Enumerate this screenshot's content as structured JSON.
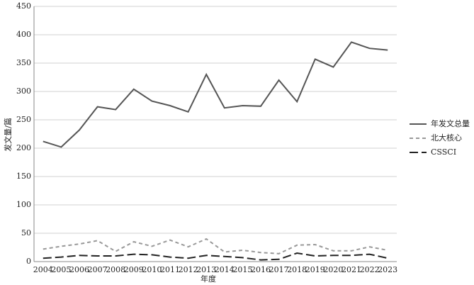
{
  "chart_data": {
    "type": "line",
    "x_label": "年度",
    "y_label": "发文量/篇",
    "categories": [
      "2004",
      "2005",
      "2006",
      "2007",
      "2008",
      "2009",
      "2010",
      "2011",
      "2012",
      "2013",
      "2014",
      "2015",
      "2016",
      "2017",
      "2018",
      "2019",
      "2020",
      "2021",
      "2022",
      "2023"
    ],
    "series": [
      {
        "name": "年发文总量",
        "color": "#555555",
        "dash": "none",
        "values": [
          212,
          202,
          232,
          273,
          268,
          304,
          283,
          275,
          264,
          330,
          271,
          275,
          274,
          320,
          282,
          357,
          343,
          387,
          376,
          373
        ]
      },
      {
        "name": "北大核心",
        "color": "#999999",
        "dash": "5,4",
        "values": [
          22,
          27,
          31,
          37,
          18,
          35,
          27,
          38,
          26,
          40,
          17,
          20,
          16,
          14,
          29,
          30,
          19,
          19,
          26,
          20
        ]
      },
      {
        "name": "CSSCI",
        "color": "#222222",
        "dash": "12,5",
        "values": [
          6,
          8,
          11,
          10,
          10,
          13,
          12,
          8,
          6,
          11,
          9,
          7,
          3,
          4,
          15,
          10,
          11,
          11,
          13,
          6
        ]
      }
    ],
    "ylim": [
      0,
      450
    ],
    "yticks": [
      0,
      50,
      100,
      150,
      200,
      250,
      300,
      350,
      400,
      450
    ],
    "grid": true,
    "legend": "right"
  }
}
